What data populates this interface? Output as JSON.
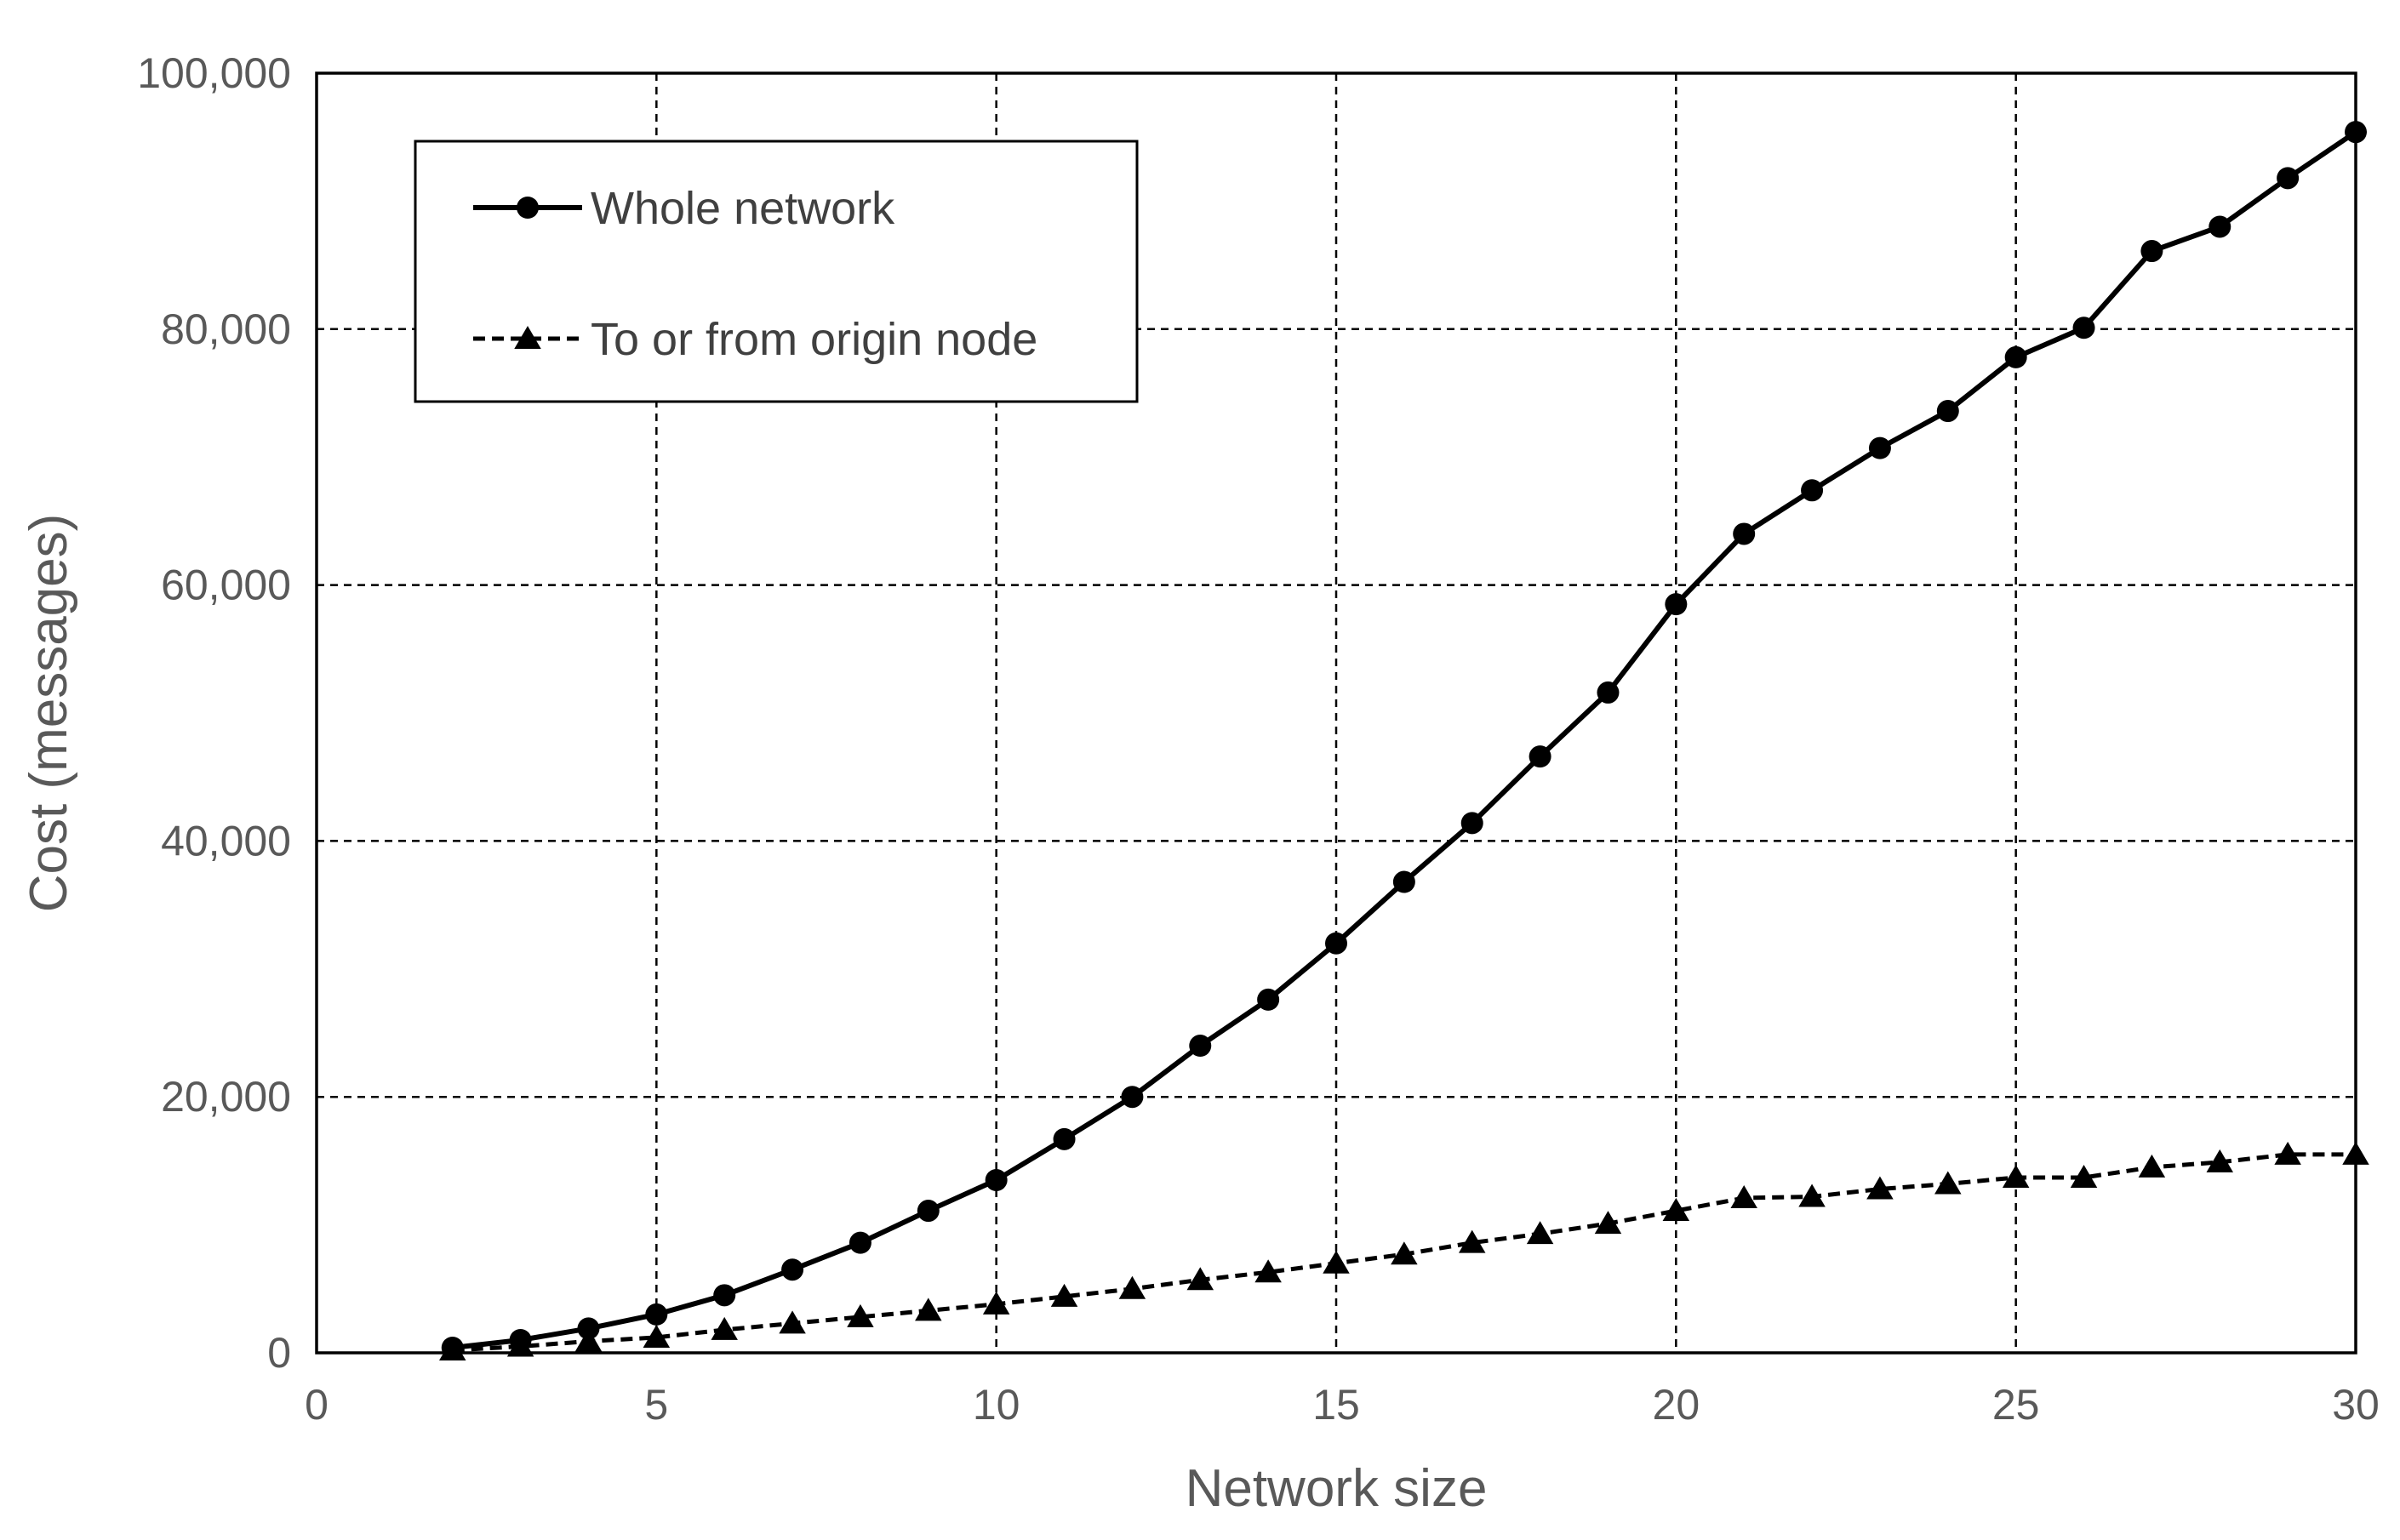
{
  "chart_data": {
    "type": "line",
    "title": "",
    "xlabel": "Network size",
    "ylabel": "Cost (messages)",
    "xlim": [
      0,
      30
    ],
    "ylim": [
      0,
      100000
    ],
    "x_ticks": [
      0,
      5,
      10,
      15,
      20,
      25,
      30
    ],
    "y_ticks": [
      0,
      20000,
      40000,
      60000,
      80000,
      100000
    ],
    "x_tick_labels": [
      "0",
      "5",
      "10",
      "15",
      "20",
      "25",
      "30"
    ],
    "y_tick_labels": [
      "0",
      "20,000",
      "40,000",
      "60,000",
      "80,000",
      "100,000"
    ],
    "grid": true,
    "legend_position": "top-left",
    "x": [
      2,
      3,
      4,
      5,
      6,
      7,
      8,
      9,
      10,
      11,
      12,
      13,
      14,
      15,
      16,
      17,
      18,
      19,
      20,
      21,
      22,
      23,
      24,
      25,
      26,
      27,
      28,
      29,
      30
    ],
    "series": [
      {
        "name": "Whole network",
        "marker": "circle",
        "line_style": "solid",
        "color": "#000000",
        "values": [
          400,
          1000,
          1900,
          3000,
          4500,
          6500,
          8600,
          11100,
          13500,
          16700,
          20000,
          24000,
          27600,
          32000,
          36800,
          41400,
          46600,
          51600,
          58500,
          64000,
          67400,
          70700,
          73600,
          77800,
          80100,
          86100,
          88000,
          91800,
          95400
        ]
      },
      {
        "name": "To or from origin node",
        "marker": "triangle",
        "line_style": "dashed",
        "color": "#000000",
        "values": [
          200,
          500,
          900,
          1200,
          1800,
          2300,
          2800,
          3300,
          3800,
          4400,
          5000,
          5700,
          6300,
          7000,
          7700,
          8600,
          9300,
          10100,
          11100,
          12100,
          12200,
          12800,
          13200,
          13700,
          13700,
          14500,
          14900,
          15500,
          15500
        ]
      }
    ]
  }
}
